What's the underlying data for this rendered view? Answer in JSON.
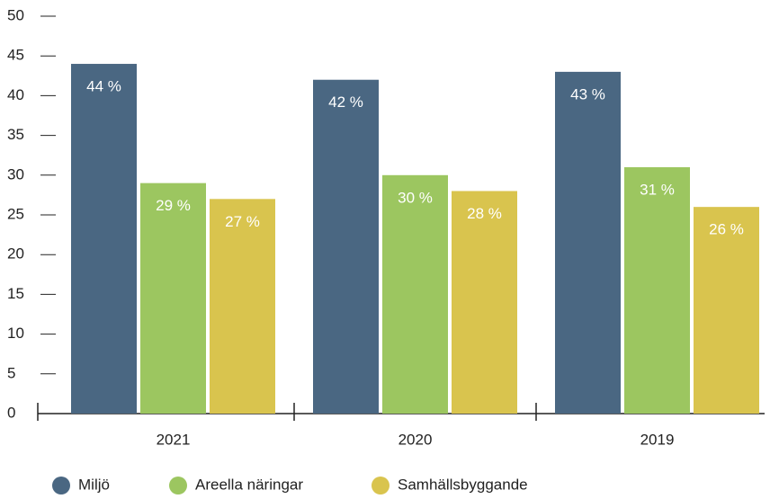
{
  "chart_data": {
    "type": "bar",
    "categories": [
      "2021",
      "2020",
      "2019"
    ],
    "series": [
      {
        "name": "Miljö",
        "color": "#4a6782",
        "values": [
          44,
          42,
          43
        ],
        "value_labels": [
          "44 %",
          "42 %",
          "43 %"
        ]
      },
      {
        "name": "Areella näringar",
        "color": "#9cc660",
        "values": [
          29,
          30,
          31
        ],
        "value_labels": [
          "29 %",
          "30 %",
          "31 %"
        ]
      },
      {
        "name": "Samhällsbyggande",
        "color": "#d9c44e",
        "values": [
          27,
          28,
          26
        ],
        "value_labels": [
          "27 %",
          "28 %",
          "26 %"
        ]
      }
    ],
    "ylim": [
      0,
      50
    ],
    "yticks": [
      0,
      5,
      10,
      15,
      20,
      25,
      30,
      35,
      40,
      45,
      50
    ],
    "legend": "bottom"
  }
}
